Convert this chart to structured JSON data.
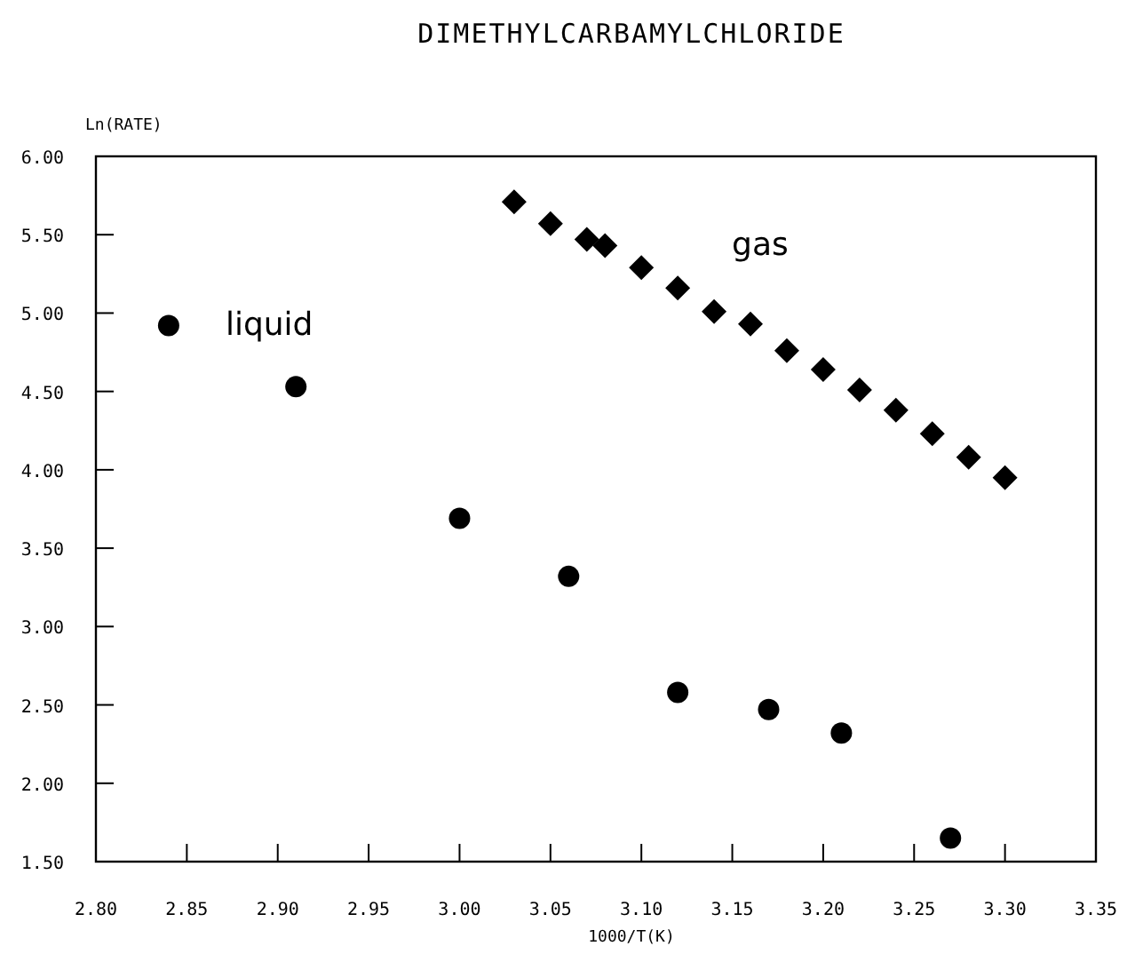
{
  "chart_data": {
    "type": "scatter",
    "title": "DIMETHYLCARBAMYLCHLORIDE",
    "xlabel": "1000/T(K)",
    "ylabel": "Ln(RATE)",
    "xlim": [
      2.8,
      3.35
    ],
    "xticks": [
      {
        "value": 2.8,
        "label": "2.80"
      },
      {
        "value": 2.85,
        "label": "2.85"
      },
      {
        "value": 2.9,
        "label": "2.90"
      },
      {
        "value": 2.95,
        "label": "2.95"
      },
      {
        "value": 3.0,
        "label": "3.00"
      },
      {
        "value": 3.05,
        "label": "3.05"
      },
      {
        "value": 3.1,
        "label": "3.10"
      },
      {
        "value": 3.15,
        "label": "3.15"
      },
      {
        "value": 3.2,
        "label": "3.20"
      },
      {
        "value": 3.25,
        "label": "3.25"
      },
      {
        "value": 3.3,
        "label": "3.30"
      },
      {
        "value": 3.35,
        "label": "3.35"
      }
    ],
    "ylim": [
      1.5,
      6
    ],
    "yticks": [
      {
        "value": 1.5,
        "label": "1.50"
      },
      {
        "value": 2,
        "label": "2.00"
      },
      {
        "value": 2.5,
        "label": "2.50"
      },
      {
        "value": 3,
        "label": "3.00"
      },
      {
        "value": 3.5,
        "label": "3.50"
      },
      {
        "value": 4,
        "label": "4.00"
      },
      {
        "value": 4.5,
        "label": "4.50"
      },
      {
        "value": 5,
        "label": "5.00"
      },
      {
        "value": 5.5,
        "label": "5.50"
      },
      {
        "value": 6,
        "label": "6.00"
      }
    ],
    "grid": false,
    "series": [
      {
        "name": "liquid",
        "color": "#000000",
        "marker": "circle",
        "x": [
          2.84,
          2.91,
          3.0,
          3.06,
          3.12,
          3.17,
          3.21,
          3.27
        ],
        "values": [
          4.92,
          4.53,
          3.69,
          3.32,
          2.58,
          2.47,
          2.32,
          1.65
        ]
      },
      {
        "name": "gas",
        "color": "#000000",
        "marker": "diamond",
        "x": [
          3.03,
          3.05,
          3.07,
          3.08,
          3.1,
          3.12,
          3.14,
          3.16,
          3.18,
          3.2,
          3.22,
          3.24,
          3.26,
          3.28,
          3.3
        ],
        "values": [
          5.71,
          5.57,
          5.47,
          5.43,
          5.29,
          5.16,
          5.01,
          4.93,
          4.76,
          4.64,
          4.51,
          4.38,
          4.23,
          4.08,
          3.95
        ]
      }
    ]
  }
}
